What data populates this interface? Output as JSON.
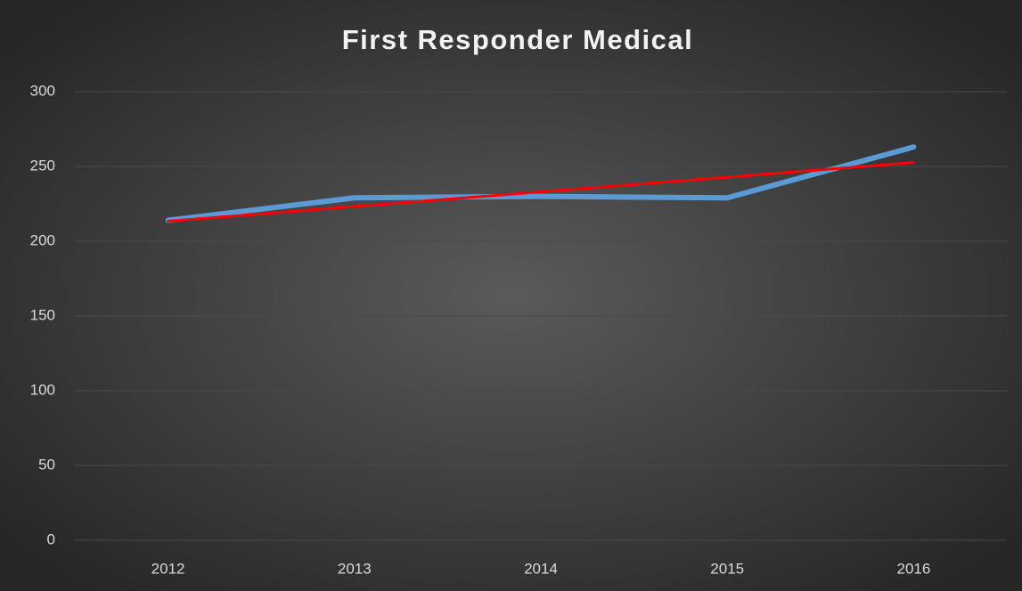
{
  "chart_data": {
    "type": "line",
    "title": "First Responder Medical",
    "categories": [
      "2012",
      "2013",
      "2014",
      "2015",
      "2016"
    ],
    "series": [
      {
        "color": "#5b9bd5",
        "values": [
          214,
          229,
          230,
          229,
          263
        ]
      },
      {
        "color": "#ff0000",
        "values": [
          213.4,
          223.2,
          233,
          242.8,
          252.6
        ]
      }
    ],
    "ylim": [
      0,
      300
    ],
    "yticks": [
      0,
      50,
      100,
      150,
      200,
      250,
      300
    ],
    "grid": true
  }
}
